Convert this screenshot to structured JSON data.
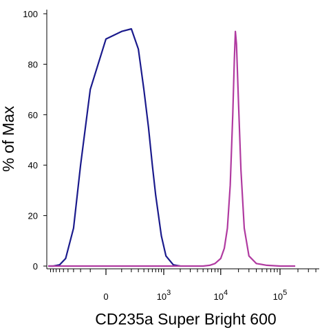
{
  "chart_data": {
    "type": "line",
    "title": "",
    "xlabel": "CD235a Super Bright 600",
    "ylabel": "% of Max",
    "xscale": "biexponential",
    "x_tick_labels": [
      {
        "value": 0,
        "base": "0",
        "exp": ""
      },
      {
        "value": 1000,
        "base": "10",
        "exp": "3"
      },
      {
        "value": 10000,
        "base": "10",
        "exp": "4"
      },
      {
        "value": 100000,
        "base": "10",
        "exp": "5"
      }
    ],
    "y_ticks": [
      0,
      20,
      40,
      60,
      80,
      100
    ],
    "ylim": [
      0,
      100
    ],
    "grid": false,
    "legend": "none",
    "series": [
      {
        "color": "#1a1a8c",
        "x": [
          -1000,
          -800,
          -600,
          -450,
          -300,
          -200,
          -100,
          0,
          100,
          200,
          300,
          400,
          500,
          600,
          700,
          900,
          1100,
          1500,
          2000
        ],
        "y": [
          0,
          0,
          0.5,
          3,
          15,
          40,
          70,
          90,
          93,
          94,
          86,
          70,
          55,
          40,
          28,
          12,
          4,
          0.5,
          0
        ]
      },
      {
        "color": "#b03aa0",
        "x": [
          -1000,
          5000,
          6500,
          8000,
          10000,
          11500,
          13000,
          14500,
          16000,
          17000,
          17700,
          18500,
          20000,
          22000,
          25000,
          30000,
          40000,
          60000,
          100000,
          180000
        ],
        "y": [
          0,
          0,
          0.3,
          1,
          3,
          7,
          15,
          32,
          60,
          82,
          93,
          88,
          65,
          38,
          15,
          4,
          1,
          0.3,
          0,
          0
        ]
      }
    ]
  }
}
